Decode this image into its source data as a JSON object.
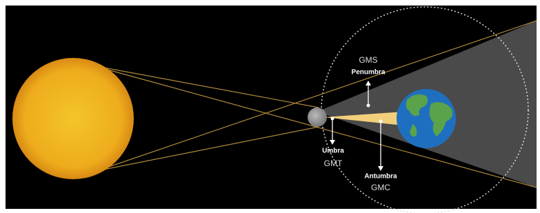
{
  "labels": {
    "penumbra": {
      "code": "GMS",
      "name": "Penumbra"
    },
    "umbra": {
      "name": "Umbra",
      "code": "GMT"
    },
    "antumbra": {
      "name": "Antumbra",
      "code": "GMC"
    }
  }
}
